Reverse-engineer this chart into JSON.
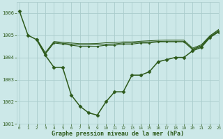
{
  "title": "Graphe pression niveau de la mer (hPa)",
  "background_color": "#cce8e8",
  "line_color": "#2d5a1b",
  "grid_color": "#aacccc",
  "xlim": [
    -0.3,
    23
  ],
  "ylim": [
    1001,
    1006.5
  ],
  "yticks": [
    1001,
    1002,
    1003,
    1004,
    1005,
    1006
  ],
  "xtick_labels": [
    "0",
    "1",
    "2",
    "3",
    "4",
    "5",
    "6",
    "7",
    "8",
    "9",
    "10",
    "11",
    "12",
    "13",
    "14",
    "15",
    "16",
    "17",
    "18",
    "19",
    "20",
    "21",
    "22",
    "23"
  ],
  "series": [
    {
      "x": [
        0,
        1,
        2,
        3,
        4,
        5,
        6,
        7,
        8,
        9,
        10,
        11,
        12,
        13,
        14,
        15,
        16,
        17,
        18,
        19,
        20,
        21,
        22,
        23
      ],
      "y": [
        1006.1,
        1005.0,
        1004.8,
        1004.1,
        1003.55,
        1003.55,
        1002.3,
        1001.8,
        1001.5,
        1001.4,
        1002.0,
        1002.45,
        1002.45,
        1003.2,
        1003.2,
        1003.35,
        1003.8,
        1003.9,
        1004.0,
        1004.0,
        1004.3,
        1004.45,
        1004.9,
        1005.15
      ],
      "marker": "D",
      "markersize": 2.5,
      "linewidth": 1.1
    },
    {
      "x": [
        2,
        3,
        4,
        5,
        6,
        7,
        8,
        9,
        10,
        11,
        12,
        13,
        14,
        15,
        16,
        17,
        18,
        19,
        20,
        21,
        22,
        23
      ],
      "y": [
        1004.8,
        1004.15,
        1004.65,
        1004.6,
        1004.55,
        1004.5,
        1004.5,
        1004.5,
        1004.55,
        1004.55,
        1004.6,
        1004.6,
        1004.65,
        1004.65,
        1004.7,
        1004.7,
        1004.7,
        1004.7,
        1004.35,
        1004.5,
        1004.92,
        1005.18
      ],
      "marker": "D",
      "markersize": 1.5,
      "linewidth": 0.8
    },
    {
      "x": [
        2,
        3,
        4,
        5,
        6,
        7,
        8,
        9,
        10,
        11,
        12,
        13,
        14,
        15,
        16,
        17,
        18,
        19,
        20,
        21,
        22,
        23
      ],
      "y": [
        1004.82,
        1004.18,
        1004.68,
        1004.64,
        1004.6,
        1004.56,
        1004.56,
        1004.57,
        1004.6,
        1004.61,
        1004.65,
        1004.65,
        1004.68,
        1004.7,
        1004.72,
        1004.73,
        1004.73,
        1004.73,
        1004.38,
        1004.53,
        1004.95,
        1005.22
      ],
      "marker": null,
      "markersize": 0,
      "linewidth": 0.7
    },
    {
      "x": [
        2,
        3,
        4,
        5,
        6,
        7,
        8,
        9,
        10,
        11,
        12,
        13,
        14,
        15,
        16,
        17,
        18,
        19,
        20,
        21,
        22,
        23
      ],
      "y": [
        1004.85,
        1004.22,
        1004.72,
        1004.68,
        1004.65,
        1004.62,
        1004.62,
        1004.63,
        1004.66,
        1004.67,
        1004.7,
        1004.7,
        1004.73,
        1004.75,
        1004.77,
        1004.78,
        1004.78,
        1004.78,
        1004.42,
        1004.57,
        1004.98,
        1005.26
      ],
      "marker": null,
      "markersize": 0,
      "linewidth": 0.7
    }
  ]
}
